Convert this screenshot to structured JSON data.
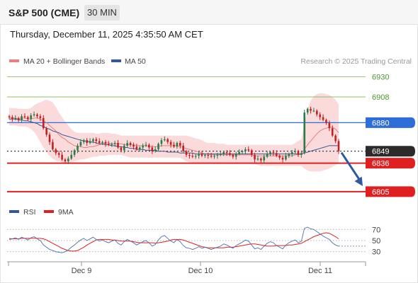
{
  "header": {
    "instrument": "S&P 500 (CME)",
    "timeframe": "30 MIN",
    "timestamp": "Thursday, December 11, 2025 4:35:50 AM CET"
  },
  "legend": {
    "ma20_label": "MA 20 + Bollinger Bands",
    "ma50_label": "MA 50",
    "credit": "Research © 2025 Trading Central",
    "rsi_label": "RSI",
    "ma9_label": "9MA"
  },
  "colors": {
    "up": "#2a7a4a",
    "down": "#c42020",
    "ma20": "#e88080",
    "ma50": "#33589a",
    "bollinger_fill": "#f9d4d4",
    "resistance": "#8cc06a",
    "pivot": "#2f6ed8",
    "support": "#e02020",
    "last": "#2b2b2b",
    "arrow": "#2f5aa0"
  },
  "chart_data": [
    {
      "type": "candlestick",
      "title": "",
      "y_unit": "index points",
      "ylim": [
        6798,
        6938
      ],
      "x_ticks": [
        "Dec 9",
        "Dec 10",
        "Dec 11"
      ],
      "levels": [
        {
          "label": "6930",
          "value": 6930,
          "kind": "resistance"
        },
        {
          "label": "6908",
          "value": 6908,
          "kind": "resistance"
        },
        {
          "label": "6880",
          "value": 6880,
          "kind": "pivot"
        },
        {
          "label": "6849",
          "value": 6849,
          "kind": "last"
        },
        {
          "label": "6836",
          "value": 6836,
          "kind": "support"
        },
        {
          "label": "6805",
          "value": 6805,
          "kind": "support"
        }
      ],
      "forecast_arrow": {
        "from": 6849,
        "to": 6808,
        "direction": "down"
      },
      "close": [
        6886,
        6884,
        6885,
        6883,
        6887,
        6886,
        6884,
        6888,
        6889,
        6887,
        6885,
        6874,
        6867,
        6859,
        6851,
        6847,
        6845,
        6840,
        6838,
        6841,
        6845,
        6850,
        6855,
        6859,
        6861,
        6858,
        6860,
        6862,
        6860,
        6858,
        6859,
        6857,
        6856,
        6857,
        6858,
        6853,
        6850,
        6855,
        6858,
        6856,
        6854,
        6851,
        6853,
        6855,
        6856,
        6853,
        6849,
        6851,
        6857,
        6861,
        6862,
        6859,
        6856,
        6854,
        6858,
        6855,
        6849,
        6845,
        6844,
        6843,
        6844,
        6846,
        6844,
        6845,
        6844,
        6843,
        6844,
        6845,
        6846,
        6848,
        6847,
        6845,
        6843,
        6846,
        6848,
        6849,
        6851,
        6850,
        6845,
        6840,
        6841,
        6839,
        6843,
        6846,
        6848,
        6847,
        6844,
        6842,
        6840,
        6844,
        6846,
        6848,
        6849,
        6845,
        6847,
        6891,
        6895,
        6893,
        6893,
        6889,
        6886,
        6883,
        6880,
        6874,
        6866,
        6860,
        6849
      ],
      "ma20": [
        6886,
        6885,
        6885,
        6884,
        6885,
        6885,
        6884,
        6884,
        6885,
        6885,
        6884,
        6882,
        6880,
        6877,
        6874,
        6871,
        6867,
        6864,
        6862,
        6859,
        6857,
        6855,
        6854,
        6854,
        6853,
        6853,
        6854,
        6854,
        6855,
        6856,
        6857,
        6858,
        6858,
        6857,
        6857,
        6857,
        6857,
        6856,
        6856,
        6856,
        6856,
        6855,
        6855,
        6855,
        6855,
        6854,
        6854,
        6854,
        6854,
        6855,
        6855,
        6855,
        6855,
        6855,
        6855,
        6854,
        6853,
        6852,
        6851,
        6850,
        6849,
        6848,
        6847,
        6846,
        6846,
        6845,
        6845,
        6845,
        6845,
        6845,
        6845,
        6845,
        6845,
        6845,
        6845,
        6845,
        6845,
        6845,
        6845,
        6844,
        6844,
        6844,
        6844,
        6844,
        6844,
        6844,
        6844,
        6844,
        6844,
        6844,
        6844,
        6844,
        6845,
        6845,
        6846,
        6851,
        6856,
        6860,
        6864,
        6868,
        6871,
        6873,
        6874,
        6875,
        6875,
        6873,
        6869
      ],
      "ma50": [
        6884,
        6884,
        6884,
        6883,
        6883,
        6882,
        6882,
        6881,
        6880,
        6879,
        6877,
        6876,
        6874,
        6873,
        6871,
        6870,
        6869,
        6867,
        6866,
        6865,
        6864,
        6863,
        6862,
        6861,
        6860,
        6860,
        6859,
        6859,
        6858,
        6857,
        6857,
        6856,
        6856,
        6855,
        6855,
        6854,
        6854,
        6853,
        6853,
        6852,
        6852,
        6851,
        6851,
        6851,
        6850,
        6850,
        6850,
        6850,
        6849,
        6849,
        6849,
        6848,
        6848,
        6848,
        6848,
        6847,
        6847,
        6847,
        6847,
        6847,
        6846,
        6846,
        6846,
        6846,
        6846,
        6846,
        6846,
        6846,
        6846,
        6846,
        6846,
        6846,
        6846,
        6846,
        6846,
        6846,
        6846,
        6846,
        6846,
        6846,
        6846,
        6846,
        6846,
        6846,
        6846,
        6846,
        6846,
        6846,
        6846,
        6846,
        6846,
        6846,
        6846,
        6846,
        6846,
        6847,
        6848,
        6849,
        6850,
        6851,
        6852,
        6853,
        6854,
        6855,
        6855,
        6855,
        6855
      ],
      "bollinger_upper": [
        6896,
        6896,
        6896,
        6895,
        6895,
        6895,
        6895,
        6896,
        6899,
        6901,
        6902,
        6904,
        6905,
        6904,
        6902,
        6897,
        6891,
        6886,
        6881,
        6877,
        6873,
        6870,
        6869,
        6869,
        6869,
        6869,
        6869,
        6869,
        6868,
        6868,
        6869,
        6869,
        6869,
        6868,
        6868,
        6867,
        6866,
        6866,
        6866,
        6866,
        6866,
        6866,
        6866,
        6866,
        6866,
        6866,
        6866,
        6866,
        6866,
        6866,
        6866,
        6866,
        6866,
        6866,
        6866,
        6866,
        6866,
        6866,
        6865,
        6864,
        6863,
        6862,
        6861,
        6859,
        6858,
        6858,
        6858,
        6857,
        6857,
        6857,
        6856,
        6856,
        6856,
        6856,
        6856,
        6856,
        6856,
        6856,
        6856,
        6856,
        6856,
        6856,
        6856,
        6856,
        6856,
        6856,
        6856,
        6856,
        6856,
        6856,
        6856,
        6856,
        6858,
        6860,
        6862,
        6879,
        6895,
        6904,
        6909,
        6911,
        6912,
        6912,
        6911,
        6910,
        6908,
        6905,
        6900
      ],
      "bollinger_lower": [
        6877,
        6877,
        6877,
        6876,
        6876,
        6876,
        6875,
        6873,
        6870,
        6865,
        6859,
        6853,
        6848,
        6844,
        6841,
        6839,
        6838,
        6837,
        6836,
        6836,
        6837,
        6838,
        6839,
        6840,
        6840,
        6841,
        6842,
        6843,
        6843,
        6844,
        6844,
        6844,
        6845,
        6845,
        6845,
        6845,
        6845,
        6844,
        6843,
        6842,
        6842,
        6842,
        6842,
        6842,
        6842,
        6842,
        6842,
        6842,
        6842,
        6842,
        6842,
        6842,
        6842,
        6842,
        6842,
        6842,
        6840,
        6838,
        6837,
        6837,
        6836,
        6836,
        6836,
        6836,
        6836,
        6836,
        6836,
        6836,
        6836,
        6836,
        6836,
        6836,
        6836,
        6836,
        6836,
        6836,
        6836,
        6836,
        6836,
        6835,
        6834,
        6833,
        6833,
        6833,
        6833,
        6833,
        6833,
        6833,
        6833,
        6833,
        6833,
        6833,
        6833,
        6833,
        6833,
        6830,
        6828,
        6827,
        6827,
        6827,
        6827,
        6828,
        6829,
        6830,
        6832,
        6834,
        6836
      ]
    },
    {
      "type": "line",
      "title": "",
      "series_names": [
        "RSI",
        "9MA"
      ],
      "ylim": [
        22,
        78
      ],
      "y_ticks": [
        70,
        50,
        30
      ],
      "rsi": [
        54,
        53,
        55,
        52,
        56,
        54,
        51,
        55,
        57,
        53,
        50,
        42,
        38,
        34,
        32,
        30,
        29,
        28,
        30,
        33,
        38,
        42,
        47,
        51,
        54,
        50,
        53,
        56,
        52,
        49,
        51,
        48,
        46,
        49,
        51,
        45,
        42,
        48,
        52,
        49,
        46,
        42,
        45,
        48,
        50,
        46,
        40,
        43,
        51,
        57,
        59,
        54,
        49,
        46,
        52,
        48,
        41,
        37,
        36,
        34,
        36,
        39,
        36,
        38,
        36,
        34,
        36,
        38,
        40,
        44,
        42,
        39,
        36,
        41,
        44,
        47,
        51,
        49,
        42,
        35,
        37,
        34,
        40,
        45,
        48,
        46,
        41,
        38,
        35,
        42,
        46,
        49,
        51,
        46,
        49,
        72,
        74,
        71,
        70,
        66,
        62,
        58,
        55,
        52,
        46,
        42,
        40
      ],
      "ma9": [
        52,
        53,
        53,
        53,
        54,
        54,
        54,
        54,
        54,
        54,
        54,
        53,
        51,
        48,
        45,
        42,
        39,
        36,
        34,
        32,
        31,
        31,
        32,
        35,
        38,
        42,
        45,
        48,
        51,
        52,
        52,
        52,
        52,
        51,
        51,
        50,
        49,
        49,
        49,
        49,
        48,
        47,
        46,
        46,
        46,
        46,
        46,
        45,
        46,
        47,
        48,
        49,
        51,
        52,
        52,
        52,
        51,
        49,
        47,
        45,
        43,
        41,
        39,
        38,
        37,
        37,
        37,
        37,
        37,
        37,
        38,
        38,
        38,
        39,
        40,
        41,
        42,
        43,
        44,
        44,
        43,
        42,
        41,
        40,
        40,
        40,
        41,
        41,
        41,
        41,
        42,
        42,
        43,
        44,
        45,
        48,
        51,
        54,
        57,
        59,
        61,
        63,
        64,
        63,
        60,
        57,
        53
      ]
    }
  ]
}
